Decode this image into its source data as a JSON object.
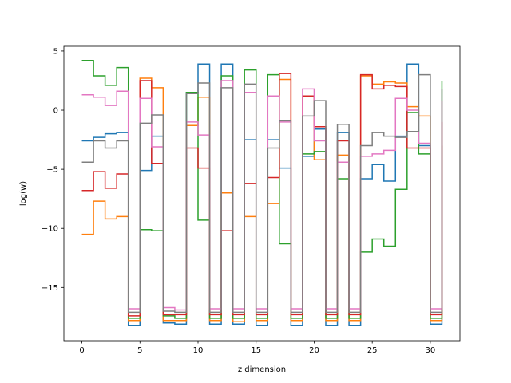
{
  "chart_data": {
    "type": "line",
    "step": "post",
    "xlabel": "z dimension",
    "ylabel": "log(w)",
    "xlim": [
      -1.55,
      32.55
    ],
    "ylim": [
      -19.5,
      5.4
    ],
    "xticks": [
      0,
      5,
      10,
      15,
      20,
      25,
      30
    ],
    "yticks": [
      5,
      0,
      -5,
      -10,
      -15
    ],
    "colors": [
      "#1f77b4",
      "#ff7f0e",
      "#2ca02c",
      "#d62728",
      "#e377c2",
      "#7f7f7f"
    ],
    "x": [
      0,
      1,
      2,
      3,
      4,
      5,
      6,
      7,
      8,
      9,
      10,
      11,
      12,
      13,
      14,
      15,
      16,
      17,
      18,
      19,
      20,
      21,
      22,
      23,
      24,
      25,
      26,
      27,
      28,
      29,
      30,
      31
    ],
    "series": [
      {
        "values": [
          -2.6,
          -2.3,
          -2.0,
          -1.9,
          -18.2,
          -5.1,
          -2.2,
          -18.0,
          -18.1,
          1.5,
          3.9,
          -18.1,
          3.9,
          -18.1,
          -2.5,
          -18.2,
          -2.5,
          -4.9,
          -18.2,
          -3.9,
          -1.6,
          -18.2,
          -1.9,
          -18.2,
          -5.8,
          -4.6,
          -6.0,
          -2.2,
          3.9,
          -3.0,
          -18.1,
          -3.0
        ]
      },
      {
        "values": [
          -10.5,
          -7.7,
          -9.2,
          -9.0,
          -17.8,
          2.7,
          1.9,
          -17.8,
          -17.8,
          -1.3,
          1.1,
          -17.8,
          -7.0,
          -17.9,
          -9.0,
          -17.8,
          -7.9,
          2.6,
          -17.8,
          1.2,
          -4.2,
          -17.8,
          -3.8,
          -17.8,
          2.9,
          2.2,
          2.4,
          2.3,
          0.3,
          -0.5,
          -17.8,
          -3.0
        ]
      },
      {
        "values": [
          4.2,
          2.9,
          2.1,
          3.6,
          -17.6,
          -10.1,
          -10.2,
          -17.4,
          -17.6,
          1.5,
          -9.3,
          -17.6,
          2.9,
          -17.6,
          3.4,
          -17.6,
          3.0,
          -11.3,
          -17.6,
          -3.7,
          -3.5,
          -17.6,
          -5.8,
          -17.6,
          -12.0,
          -10.9,
          -11.5,
          -6.7,
          -0.2,
          -3.7,
          -17.6,
          2.5
        ]
      },
      {
        "values": [
          -6.8,
          -5.2,
          -6.6,
          -5.4,
          -17.4,
          2.5,
          -4.5,
          -17.3,
          -17.3,
          -3.2,
          -4.9,
          -17.3,
          -10.2,
          -17.3,
          -6.2,
          -17.3,
          -5.7,
          3.1,
          -17.3,
          1.2,
          -1.4,
          -17.3,
          -2.6,
          -17.3,
          3.0,
          1.8,
          2.1,
          2.0,
          -3.2,
          -3.2,
          -17.3,
          -1.0
        ]
      },
      {
        "values": [
          1.3,
          1.1,
          0.4,
          1.6,
          -16.8,
          1.0,
          -3.1,
          -16.7,
          -16.9,
          -1.0,
          -2.1,
          -16.8,
          2.5,
          -16.8,
          1.5,
          -16.8,
          1.2,
          -1.0,
          -16.8,
          1.8,
          -2.6,
          -16.8,
          -4.4,
          -16.8,
          -3.9,
          -3.7,
          -3.4,
          1.0,
          0.0,
          -2.8,
          -16.8,
          0.8
        ]
      },
      {
        "values": [
          -4.4,
          -2.6,
          -3.2,
          -2.6,
          -17.1,
          -1.1,
          -0.4,
          -17.0,
          -17.1,
          1.4,
          2.3,
          -17.1,
          1.9,
          -17.1,
          2.2,
          -17.1,
          -3.2,
          -0.9,
          -17.1,
          -0.5,
          0.8,
          -17.1,
          -1.2,
          -17.1,
          -3.0,
          -1.9,
          -2.2,
          -2.3,
          -1.8,
          3.0,
          -17.1,
          1.8
        ]
      }
    ]
  }
}
